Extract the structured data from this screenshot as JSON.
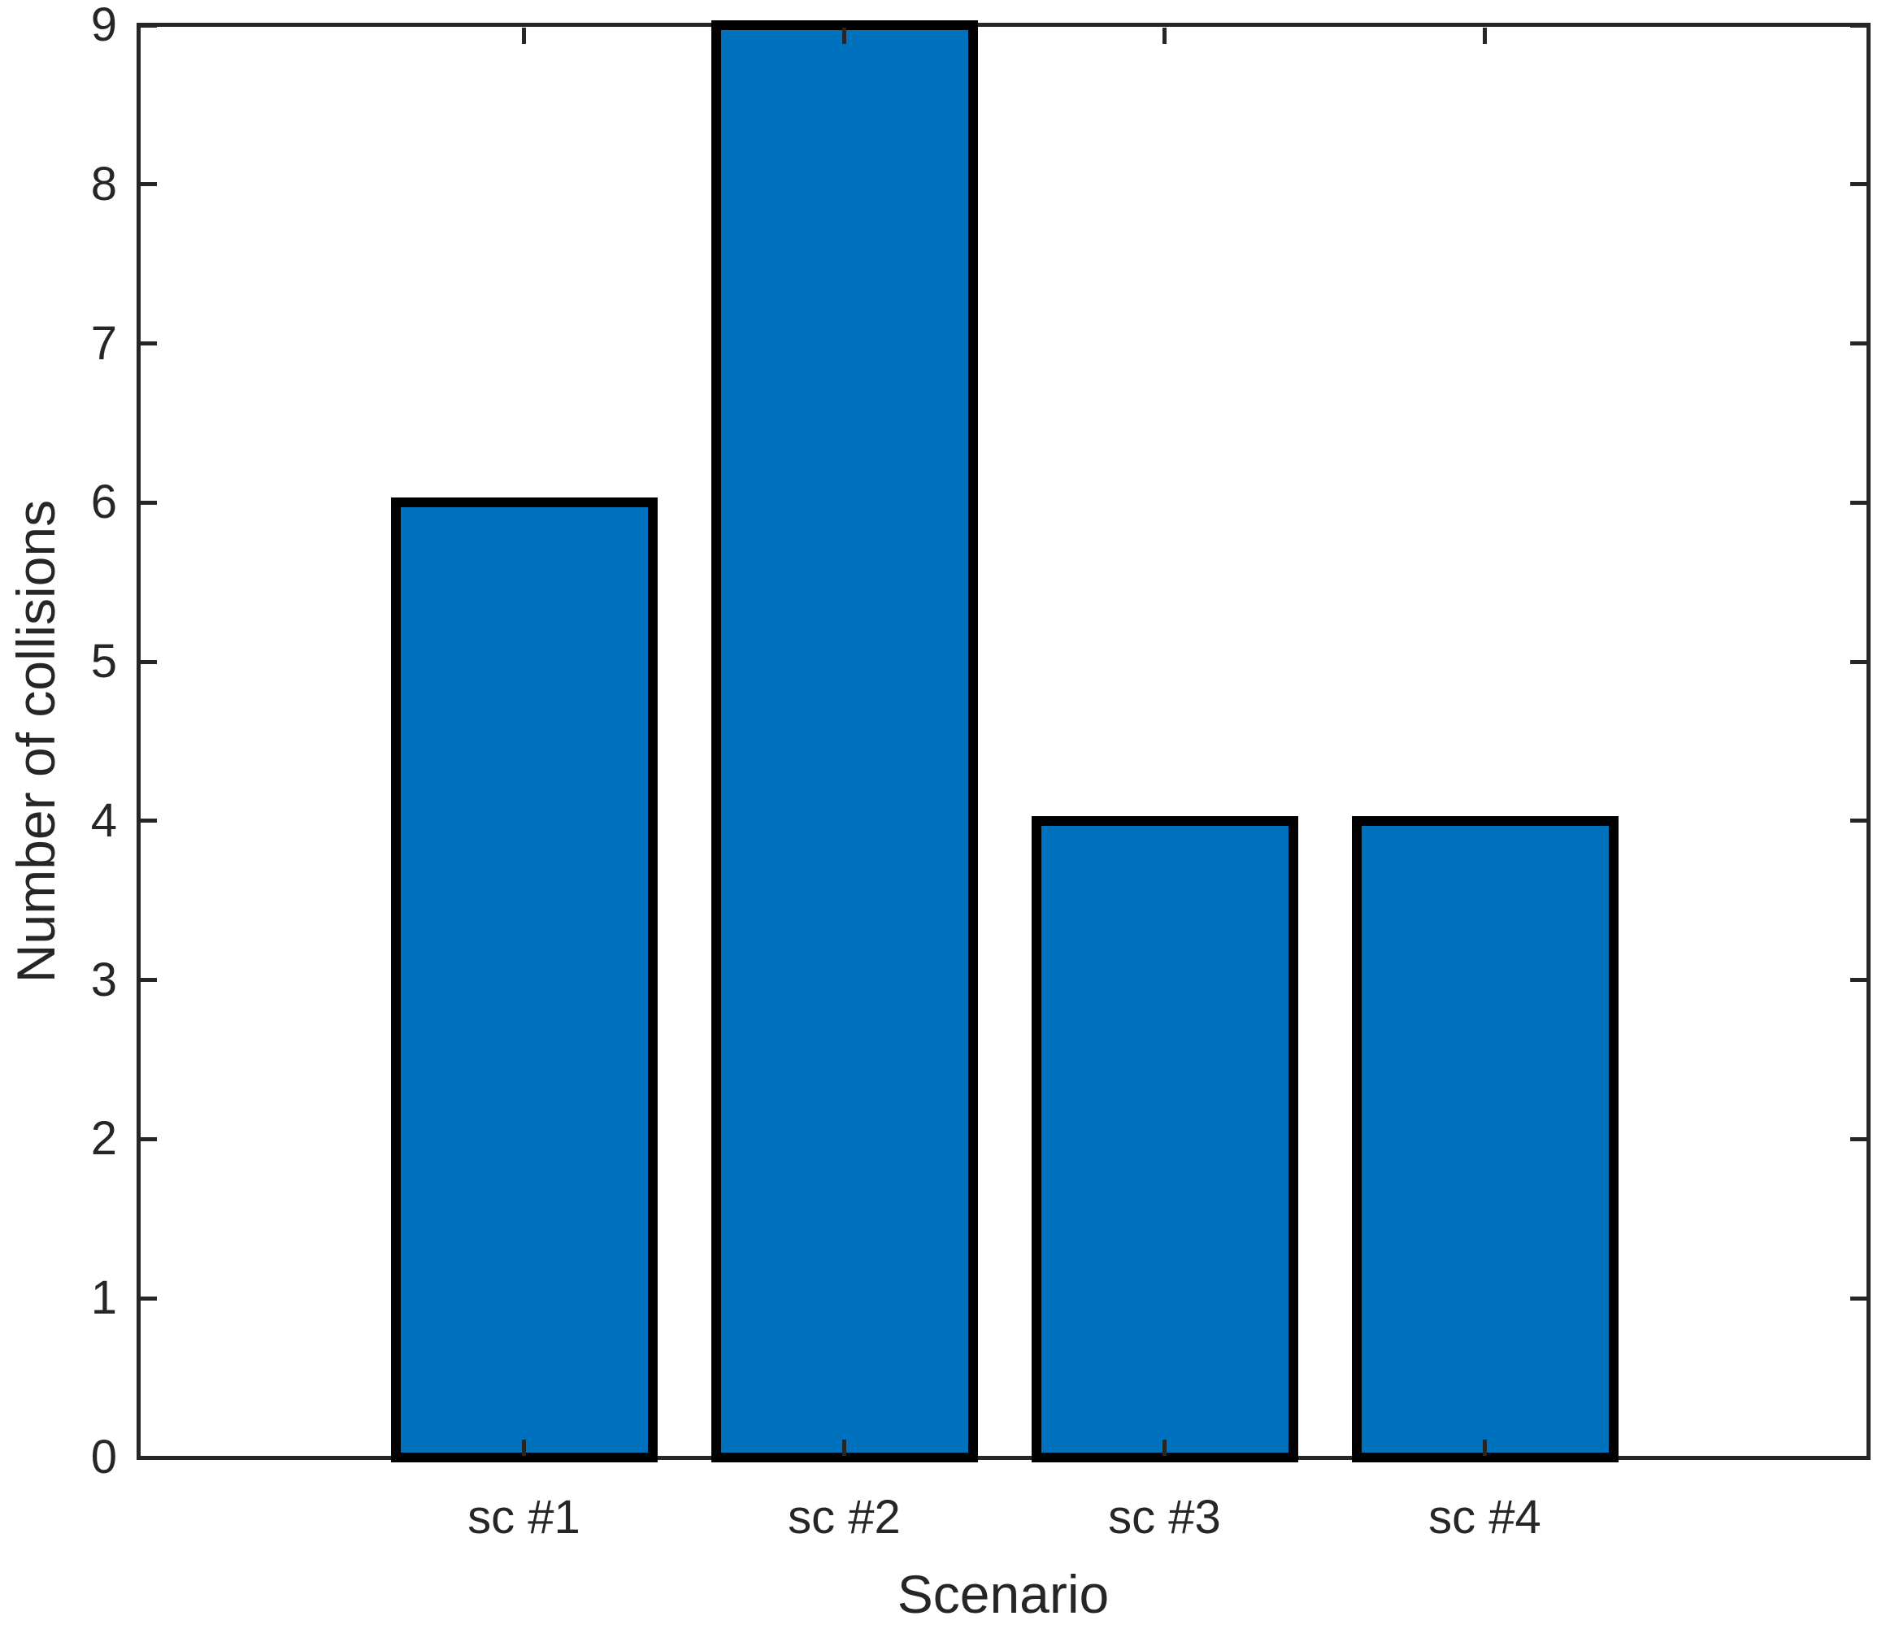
{
  "chart_data": {
    "type": "bar",
    "categories": [
      "sc #1",
      "sc #2",
      "sc #3",
      "sc #4"
    ],
    "values": [
      6,
      9,
      4,
      4
    ],
    "title": "",
    "xlabel": "Scenario",
    "ylabel": "Number of collisions",
    "ylim": [
      0,
      9
    ],
    "yticks": [
      "0",
      "1",
      "2",
      "3",
      "4",
      "5",
      "6",
      "7",
      "8",
      "9"
    ],
    "grid": false,
    "legend_position": "none",
    "colors": {
      "bar_fill": "#0072BD",
      "bar_edge": "#000000",
      "axis": "#262626",
      "background": "#FFFFFF"
    }
  }
}
